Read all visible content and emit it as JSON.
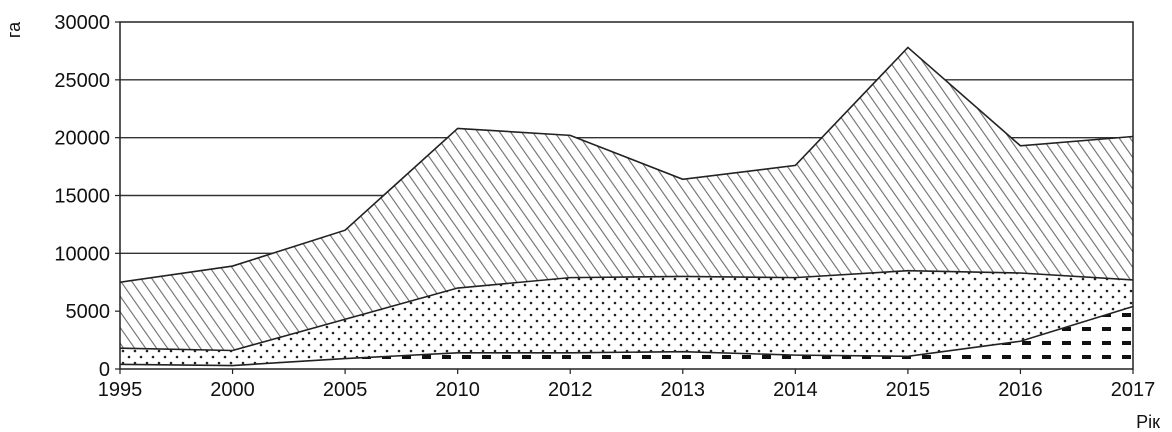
{
  "chart_data": {
    "type": "area",
    "stacked": true,
    "ylabel": "га",
    "xlabel": "Рік",
    "x": [
      "1995",
      "2000",
      "2005",
      "2010",
      "2012",
      "2013",
      "2014",
      "2015",
      "2016",
      "2017"
    ],
    "ylim": [
      0,
      30000
    ],
    "yticks": [
      0,
      5000,
      10000,
      15000,
      20000,
      25000,
      30000
    ],
    "grid": true,
    "series": [
      {
        "values": [
          400,
          300,
          900,
          1400,
          1400,
          1500,
          1200,
          1100,
          2400,
          5400
        ],
        "pattern": "dashes"
      },
      {
        "values": [
          1800,
          1600,
          4300,
          7000,
          7900,
          8000,
          7900,
          8500,
          8300,
          7700
        ],
        "pattern": "dots"
      },
      {
        "values": [
          7500,
          8900,
          12000,
          20800,
          20200,
          16400,
          17600,
          27800,
          19300,
          20100
        ],
        "pattern": "diagonal-hatch"
      }
    ],
    "colors": {
      "line": "#222222",
      "grid": "#333333",
      "fill": "#ffffff"
    }
  }
}
